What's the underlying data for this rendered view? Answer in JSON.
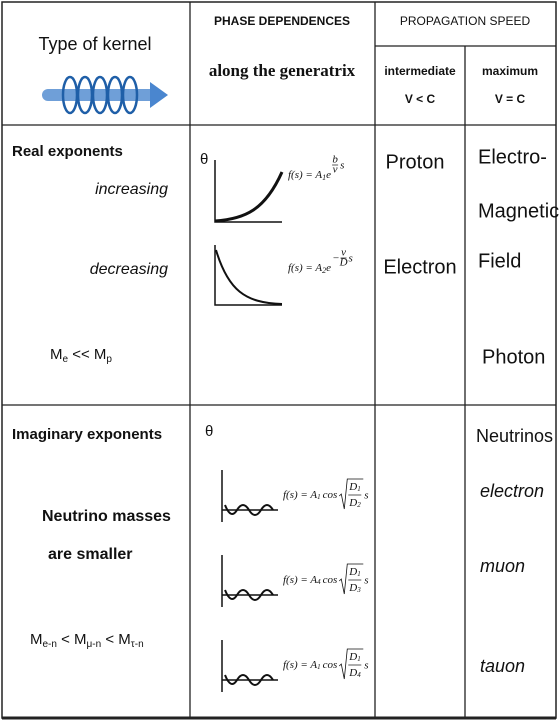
{
  "header": {
    "kernel": "Type of kernel",
    "phase_title": "PHASE DEPENDENCES",
    "phase_subtitle": "along the generatrix",
    "speed_title": "PROPAGATION SPEED",
    "intermediate": [
      "intermediate",
      "V < C"
    ],
    "maximum": [
      "maximum",
      "V = C"
    ]
  },
  "rows": [
    {
      "kernel": [
        "Real exponents",
        "increasing",
        "decreasing"
      ],
      "masses": [
        "M",
        "e",
        " << M",
        "p"
      ],
      "axis": "θ",
      "formulas": [
        {
          "lhs": "f(s) = A",
          "sub": "1",
          "base": "e",
          "sign": "",
          "num": "b",
          "den": "v",
          "var": "s"
        },
        {
          "lhs": "f(s) = A",
          "sub": "2",
          "base": "e",
          "sign": "−",
          "num": "v",
          "den": "D",
          "var": "s"
        }
      ],
      "intermediate": [
        "Proton",
        "Electron"
      ],
      "maximum": [
        "Electro-",
        "Magnetic",
        "Field",
        "Photon"
      ]
    },
    {
      "kernel": [
        "Imaginary exponents",
        "Neutrino masses",
        "are smaller"
      ],
      "masses": [
        "M",
        "e-n",
        " < M",
        "μ-n",
        " < M",
        "τ-n"
      ],
      "axis": "θ",
      "formulas": [
        {
          "lhs": "f(s) = A",
          "sub": "1",
          "fn": "cos",
          "num": "D",
          "num_sub": "1",
          "den": "D",
          "den_sub": "2",
          "var": "s"
        },
        {
          "lhs": "f(s) = A",
          "sub": "4",
          "fn": "cos",
          "num": "D",
          "num_sub": "1",
          "den": "D",
          "den_sub": "3",
          "var": "s"
        },
        {
          "lhs": "f(s) = A",
          "sub": "1",
          "fn": "cos",
          "num": "D",
          "num_sub": "1",
          "den": "D",
          "den_sub": "4",
          "var": "s"
        }
      ],
      "maximum": [
        "Neutrinos",
        "electron",
        "muon",
        "tauon"
      ]
    }
  ]
}
